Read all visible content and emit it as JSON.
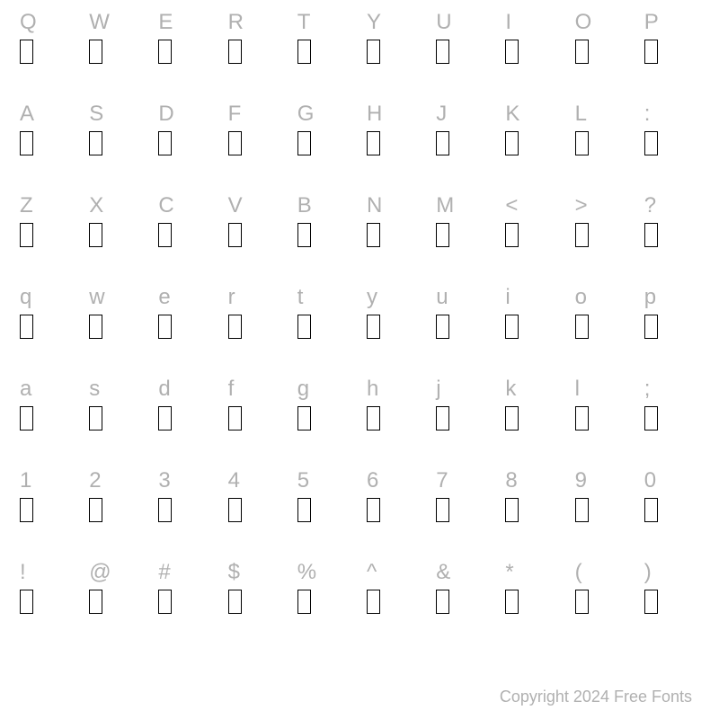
{
  "chart": {
    "type": "font-character-map",
    "columns": 10,
    "rows": 7,
    "background_color": "#ffffff",
    "label_color": "#b0b0b0",
    "label_fontsize": 24,
    "glyph_box": {
      "width": 15,
      "height": 27,
      "border_color": "#000000",
      "border_width": 1.5
    },
    "characters": [
      "Q",
      "W",
      "E",
      "R",
      "T",
      "Y",
      "U",
      "I",
      "O",
      "P",
      "A",
      "S",
      "D",
      "F",
      "G",
      "H",
      "J",
      "K",
      "L",
      ":",
      "Z",
      "X",
      "C",
      "V",
      "B",
      "N",
      "M",
      "<",
      ">",
      "?",
      "q",
      "w",
      "e",
      "r",
      "t",
      "y",
      "u",
      "i",
      "o",
      "p",
      "a",
      "s",
      "d",
      "f",
      "g",
      "h",
      "j",
      "k",
      "l",
      ";",
      "1",
      "2",
      "3",
      "4",
      "5",
      "6",
      "7",
      "8",
      "9",
      "0",
      "!",
      "@",
      "#",
      "$",
      "%",
      "^",
      "&",
      "*",
      "(",
      ")"
    ]
  },
  "footer_text": "Copyright 2024 Free Fonts"
}
